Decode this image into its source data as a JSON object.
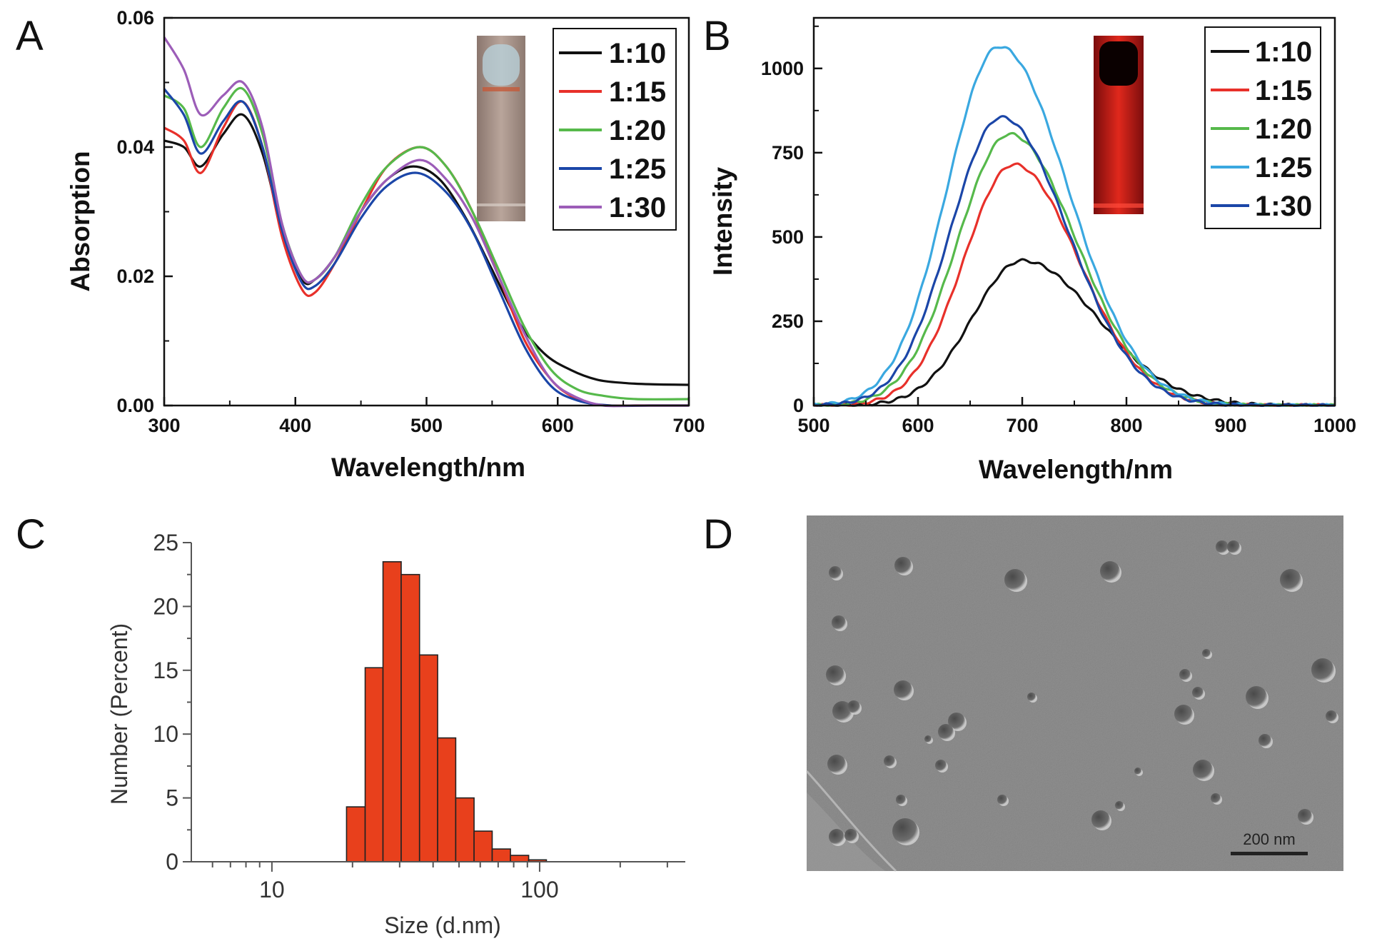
{
  "panels": {
    "A": "A",
    "B": "B",
    "C": "C",
    "D": "D"
  },
  "chart_data": [
    {
      "id": "A",
      "type": "line",
      "xlabel": "Wavelength/nm",
      "ylabel": "Absorption",
      "xlim": [
        300,
        700
      ],
      "ylim": [
        0,
        0.06
      ],
      "xticks": [
        "300",
        "400",
        "500",
        "600",
        "700"
      ],
      "yticks": [
        "0.00",
        "0.02",
        "0.04",
        "0.06"
      ],
      "legend_position": "top-right",
      "inset": "cuvette photo (absorption)",
      "series": [
        {
          "name": "1:10",
          "color": "#111111",
          "x": [
            300,
            315,
            328,
            345,
            360,
            375,
            390,
            405,
            415,
            430,
            450,
            470,
            490,
            510,
            530,
            550,
            570,
            590,
            610,
            630,
            650,
            670,
            700
          ],
          "y": [
            0.041,
            0.04,
            0.037,
            0.042,
            0.045,
            0.039,
            0.027,
            0.0195,
            0.0195,
            0.023,
            0.03,
            0.035,
            0.037,
            0.035,
            0.029,
            0.021,
            0.013,
            0.008,
            0.0055,
            0.004,
            0.0035,
            0.0033,
            0.0032
          ]
        },
        {
          "name": "1:15",
          "color": "#e8302a",
          "x": [
            300,
            315,
            328,
            345,
            360,
            375,
            390,
            405,
            415,
            430,
            450,
            470,
            495,
            515,
            535,
            555,
            575,
            595,
            610,
            625,
            640,
            660,
            700
          ],
          "y": [
            0.043,
            0.041,
            0.036,
            0.043,
            0.047,
            0.04,
            0.026,
            0.018,
            0.0175,
            0.022,
            0.03,
            0.037,
            0.04,
            0.037,
            0.03,
            0.02,
            0.01,
            0.004,
            0.0015,
            0.0003,
            0.0,
            0.0,
            0.0
          ]
        },
        {
          "name": "1:20",
          "color": "#56b94b",
          "x": [
            300,
            315,
            328,
            345,
            360,
            375,
            390,
            405,
            415,
            430,
            450,
            470,
            495,
            515,
            535,
            555,
            575,
            595,
            615,
            635,
            660,
            700
          ],
          "y": [
            0.048,
            0.046,
            0.04,
            0.046,
            0.049,
            0.042,
            0.028,
            0.02,
            0.0195,
            0.023,
            0.031,
            0.037,
            0.04,
            0.037,
            0.03,
            0.021,
            0.012,
            0.0055,
            0.0025,
            0.0015,
            0.001,
            0.001
          ]
        },
        {
          "name": "1:25",
          "color": "#1b46a8",
          "x": [
            300,
            315,
            328,
            345,
            360,
            375,
            390,
            405,
            415,
            430,
            450,
            470,
            493,
            515,
            535,
            555,
            575,
            595,
            615,
            640,
            670,
            700
          ],
          "y": [
            0.049,
            0.045,
            0.039,
            0.044,
            0.047,
            0.04,
            0.027,
            0.019,
            0.0185,
            0.022,
            0.029,
            0.034,
            0.036,
            0.033,
            0.027,
            0.018,
            0.009,
            0.003,
            0.0008,
            0.0,
            0.0,
            0.0
          ]
        },
        {
          "name": "1:30",
          "color": "#9c5db8",
          "x": [
            300,
            315,
            328,
            345,
            360,
            375,
            390,
            405,
            415,
            430,
            450,
            470,
            495,
            515,
            535,
            555,
            575,
            595,
            615,
            635,
            660,
            700
          ],
          "y": [
            0.057,
            0.052,
            0.045,
            0.048,
            0.05,
            0.043,
            0.028,
            0.02,
            0.0195,
            0.023,
            0.03,
            0.035,
            0.038,
            0.035,
            0.029,
            0.02,
            0.011,
            0.004,
            0.0012,
            0.0,
            0.0,
            0.0
          ]
        }
      ]
    },
    {
      "id": "B",
      "type": "line",
      "xlabel": "Wavelength/nm",
      "ylabel": "Intensity",
      "xlim": [
        500,
        1000
      ],
      "ylim": [
        0,
        1150
      ],
      "xticks": [
        "500",
        "600",
        "700",
        "800",
        "900",
        "1000"
      ],
      "yticks": [
        "0",
        "250",
        "500",
        "750",
        "1000"
      ],
      "legend_position": "top-right",
      "inset": "cuvette photo (red fluorescence)",
      "series": [
        {
          "name": "1:10",
          "color": "#111111",
          "peak_x": 700,
          "peak": 430,
          "sl": 48,
          "sr": 72
        },
        {
          "name": "1:15",
          "color": "#e8302a",
          "peak_x": 692,
          "peak": 715,
          "sl": 48,
          "sr": 62
        },
        {
          "name": "1:20",
          "color": "#56b94b",
          "peak_x": 688,
          "peak": 805,
          "sl": 50,
          "sr": 64
        },
        {
          "name": "1:25",
          "color": "#3aa8e0",
          "peak_x": 678,
          "peak": 1065,
          "sl": 50,
          "sr": 66
        },
        {
          "name": "1:30",
          "color": "#1b46a8",
          "peak_x": 680,
          "peak": 855,
          "sl": 49,
          "sr": 64
        }
      ]
    },
    {
      "id": "C",
      "type": "bar",
      "xlabel": "Size (d.nm)",
      "ylabel": "Number (Percent)",
      "xscale": "log",
      "xlim": [
        5,
        350
      ],
      "ylim": [
        0,
        25
      ],
      "xticks": [
        "10",
        "100"
      ],
      "yticks": [
        "0",
        "5",
        "10",
        "15",
        "20",
        "25"
      ],
      "bar_color": "#e8401c",
      "bins": [
        {
          "x0": 19.0,
          "x1": 22.3,
          "value": 4.3
        },
        {
          "x0": 22.3,
          "x1": 26.0,
          "value": 15.2
        },
        {
          "x0": 26.0,
          "x1": 30.4,
          "value": 23.5
        },
        {
          "x0": 30.4,
          "x1": 35.6,
          "value": 22.5
        },
        {
          "x0": 35.6,
          "x1": 41.6,
          "value": 16.2
        },
        {
          "x0": 41.6,
          "x1": 48.6,
          "value": 9.7
        },
        {
          "x0": 48.6,
          "x1": 56.9,
          "value": 5.0
        },
        {
          "x0": 56.9,
          "x1": 66.5,
          "value": 2.4
        },
        {
          "x0": 66.5,
          "x1": 77.8,
          "value": 1.0
        },
        {
          "x0": 77.8,
          "x1": 91.0,
          "value": 0.5
        },
        {
          "x0": 91.0,
          "x1": 106.0,
          "value": 0.15
        }
      ]
    }
  ],
  "panel_d": {
    "description": "electron microscopy image of nanoparticles",
    "scale_bar_label": "200 nm"
  }
}
